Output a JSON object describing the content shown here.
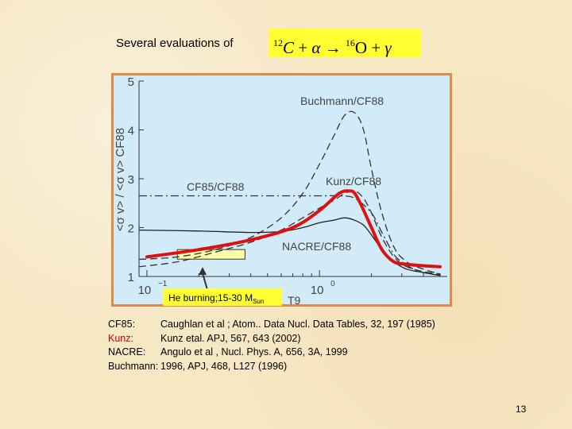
{
  "slide": {
    "title": "Several evaluations of",
    "formula": {
      "reactant_mass": "12",
      "reactant": "C",
      "plus1": "+",
      "alpha": "α",
      "arrow": "→",
      "product_mass": "16",
      "product": "O",
      "plus2": "+",
      "gamma": "γ"
    },
    "page_number": "13"
  },
  "chart_data": {
    "type": "line",
    "x_scale": "log",
    "x_label": "T9",
    "y_label": "<σ v> / <σ v> CF88",
    "xlim": [
      0.09,
      5.5
    ],
    "ylim": [
      1,
      5
    ],
    "y_ticks": [
      "1",
      "2",
      "3",
      "4",
      "5"
    ],
    "x_ticks": [
      {
        "base": "10",
        "exp": "−1"
      },
      {
        "base": "10",
        "exp": "0"
      }
    ],
    "annotation": {
      "text": "He burning;15-30 M",
      "sub": "Sun",
      "range": [
        0.15,
        0.37
      ]
    },
    "series": [
      {
        "name": "Buchmann/CF88",
        "label": "Buchmann/CF88",
        "style": "dashed",
        "color": "#333333",
        "x": [
          0.09,
          0.15,
          0.25,
          0.4,
          0.6,
          0.8,
          1.0,
          1.2,
          1.4,
          1.6,
          1.8,
          2.0,
          2.3,
          2.7,
          3.2,
          4.0,
          5.0
        ],
        "y": [
          1.35,
          1.4,
          1.55,
          1.8,
          2.2,
          2.7,
          3.3,
          3.85,
          4.3,
          4.35,
          4.0,
          3.2,
          2.3,
          1.6,
          1.3,
          1.15,
          1.05
        ]
      },
      {
        "name": "Kunz/CF88",
        "label": "Kunz/CF88",
        "style": "dashed",
        "color": "#333333",
        "x": [
          0.09,
          0.15,
          0.25,
          0.4,
          0.6,
          0.8,
          1.0,
          1.2,
          1.4,
          1.6,
          1.8,
          2.0,
          2.3,
          2.7,
          3.2,
          4.0,
          5.0
        ],
        "y": [
          1.2,
          1.3,
          1.5,
          1.7,
          1.95,
          2.2,
          2.4,
          2.55,
          2.7,
          2.75,
          2.6,
          2.3,
          1.8,
          1.4,
          1.2,
          1.1,
          1.05
        ]
      },
      {
        "name": "CF85/CF88",
        "label": "CF85/CF88",
        "style": "dashdot",
        "color": "#333333",
        "x": [
          0.09,
          0.3,
          0.6,
          1.0,
          1.3,
          1.6,
          2.0,
          2.3,
          2.7,
          3.0,
          3.5,
          4.0,
          5.0
        ],
        "y": [
          2.65,
          2.65,
          2.65,
          2.65,
          2.65,
          2.6,
          2.3,
          1.9,
          1.45,
          1.3,
          1.15,
          1.08,
          1.03
        ]
      },
      {
        "name": "NACRE/CF88",
        "label": "NACRE/CF88",
        "style": "solid",
        "color": "#222222",
        "x": [
          0.09,
          0.2,
          0.4,
          0.6,
          0.8,
          1.0,
          1.2,
          1.4,
          1.6,
          1.8,
          2.0,
          2.3,
          2.7,
          3.2,
          4.0,
          5.0
        ],
        "y": [
          1.95,
          1.93,
          1.9,
          1.92,
          2.0,
          2.1,
          2.15,
          2.2,
          2.15,
          2.05,
          1.85,
          1.55,
          1.3,
          1.15,
          1.08,
          1.02
        ]
      },
      {
        "name": "Kunz (thick)",
        "label": "",
        "style": "thick",
        "color": "#dd1111",
        "x": [
          0.1,
          0.2,
          0.4,
          0.7,
          1.0,
          1.3,
          1.5,
          1.6,
          1.75,
          2.0,
          2.3,
          2.7,
          3.2,
          4.0,
          5.0
        ],
        "y": [
          1.4,
          1.55,
          1.75,
          2.0,
          2.35,
          2.7,
          2.75,
          2.7,
          2.45,
          2.0,
          1.55,
          1.3,
          1.25,
          1.22,
          1.2
        ]
      }
    ]
  },
  "references": [
    {
      "key": "CF85:",
      "text": "Caughlan et al ; Atom.. Data Nucl. Data Tables, 32, 197 (1985)",
      "color": "#000000"
    },
    {
      "key": "Kunz:",
      "text": "Kunz etal. APJ, 567, 643 (2002)",
      "color": "#cc0000"
    },
    {
      "key": "NACRE:",
      "text": "Angulo et al , Nucl. Phys. A, 656, 3A, 1999",
      "color": "#000000"
    },
    {
      "key": "Buchmann:",
      "text": "1996, APJ, 468, L127 (1996)",
      "color": "#000000"
    }
  ]
}
